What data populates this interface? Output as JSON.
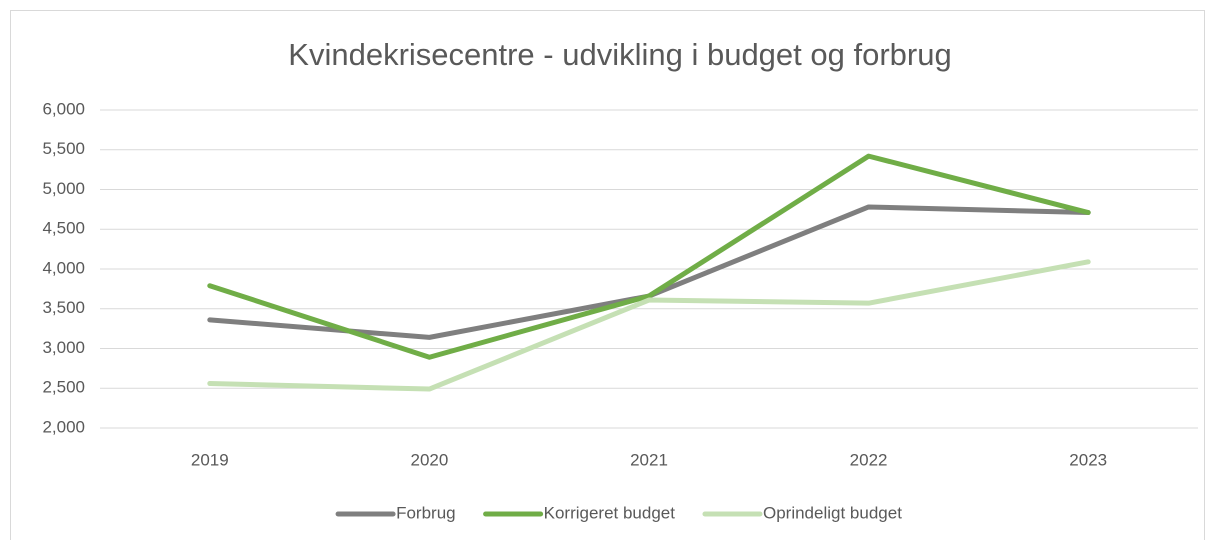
{
  "chart_data": {
    "type": "line",
    "title": "Kvindekrisecentre - udvikling i budget og forbrug",
    "categories": [
      "2019",
      "2020",
      "2021",
      "2022",
      "2023"
    ],
    "series": [
      {
        "name": "Forbrug",
        "color": "#7f7f7f",
        "values": [
          3360,
          3140,
          3660,
          4780,
          4710
        ]
      },
      {
        "name": "Korrigeret budget",
        "color": "#70ad47",
        "values": [
          3790,
          2890,
          3660,
          5420,
          4710
        ]
      },
      {
        "name": "Oprindeligt budget",
        "color": "#c5e0b4",
        "values": [
          2560,
          2490,
          3610,
          3570,
          4090
        ]
      }
    ],
    "ylim": [
      2000,
      6000
    ],
    "yticks": [
      {
        "value": 2000,
        "label": "2,000"
      },
      {
        "value": 2500,
        "label": "2,500"
      },
      {
        "value": 3000,
        "label": "3,000"
      },
      {
        "value": 3500,
        "label": "3,500"
      },
      {
        "value": 4000,
        "label": "4,000"
      },
      {
        "value": 4500,
        "label": "4,500"
      },
      {
        "value": 5000,
        "label": "5,000"
      },
      {
        "value": 5500,
        "label": "5,500"
      },
      {
        "value": 6000,
        "label": "6,000"
      }
    ],
    "grid": true,
    "legend": "bottom"
  }
}
